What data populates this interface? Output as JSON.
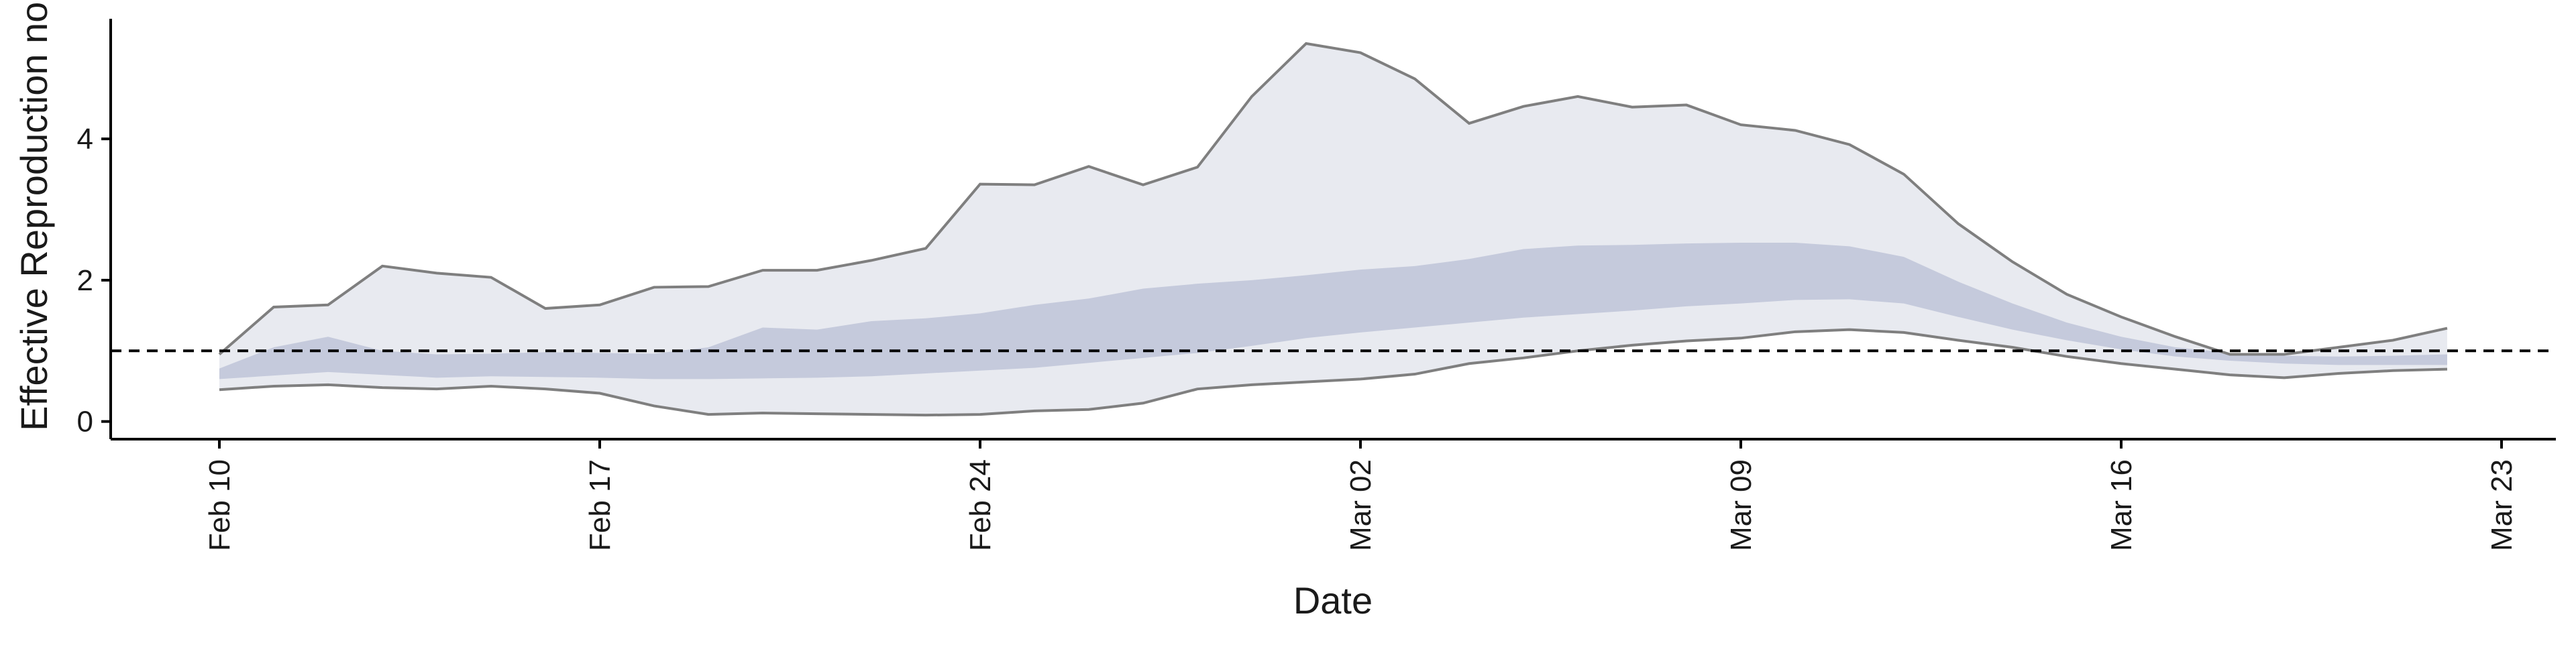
{
  "chart_data": {
    "type": "area",
    "xlabel": "Date",
    "ylabel": "Effective Reproduction no.",
    "x_ticks": [
      "Feb 10",
      "Feb 17",
      "Feb 24",
      "Mar 02",
      "Mar 09",
      "Mar 16",
      "Mar 23"
    ],
    "y_ticks": [
      0,
      2,
      4
    ],
    "x_range": [
      "2020-02-08",
      "2020-03-24"
    ],
    "ylim": [
      -0.25,
      5.7
    ],
    "grid": false,
    "legend": "none",
    "reference_line": {
      "y": 1,
      "style": "dashed",
      "color": "#000000"
    },
    "colors": {
      "outer_band": "#e8eaf0",
      "inner_band": "#c5cadc",
      "bound_line": "#7f7f7f"
    },
    "dates": [
      "2020-02-10",
      "2020-02-11",
      "2020-02-12",
      "2020-02-13",
      "2020-02-14",
      "2020-02-15",
      "2020-02-16",
      "2020-02-17",
      "2020-02-18",
      "2020-02-19",
      "2020-02-20",
      "2020-02-21",
      "2020-02-22",
      "2020-02-23",
      "2020-02-24",
      "2020-02-25",
      "2020-02-26",
      "2020-02-27",
      "2020-02-28",
      "2020-02-29",
      "2020-03-01",
      "2020-03-02",
      "2020-03-03",
      "2020-03-04",
      "2020-03-05",
      "2020-03-06",
      "2020-03-07",
      "2020-03-08",
      "2020-03-09",
      "2020-03-10",
      "2020-03-11",
      "2020-03-12",
      "2020-03-13",
      "2020-03-14",
      "2020-03-15",
      "2020-03-16",
      "2020-03-17",
      "2020-03-18",
      "2020-03-19",
      "2020-03-20",
      "2020-03-21",
      "2020-03-22"
    ],
    "outer_upper": [
      0.95,
      1.62,
      1.65,
      2.2,
      2.1,
      2.04,
      1.6,
      1.65,
      1.9,
      1.91,
      2.14,
      2.14,
      2.28,
      2.45,
      3.36,
      3.35,
      3.61,
      3.35,
      3.6,
      4.6,
      5.35,
      5.22,
      4.85,
      4.22,
      4.46,
      4.6,
      4.45,
      4.48,
      4.2,
      4.12,
      3.92,
      3.5,
      2.8,
      2.26,
      1.8,
      1.48,
      1.2,
      0.95,
      0.95,
      1.05,
      1.15,
      1.32
    ],
    "outer_lower": [
      0.45,
      0.5,
      0.52,
      0.48,
      0.46,
      0.5,
      0.46,
      0.4,
      0.22,
      0.1,
      0.12,
      0.11,
      0.1,
      0.09,
      0.1,
      0.15,
      0.17,
      0.26,
      0.46,
      0.52,
      0.56,
      0.6,
      0.67,
      0.82,
      0.9,
      1.0,
      1.08,
      1.14,
      1.18,
      1.27,
      1.3,
      1.26,
      1.15,
      1.05,
      0.92,
      0.82,
      0.74,
      0.66,
      0.62,
      0.68,
      0.72,
      0.74
    ],
    "inner_upper": [
      0.75,
      1.05,
      1.2,
      1.0,
      0.95,
      0.96,
      0.98,
      0.97,
      0.96,
      1.05,
      1.33,
      1.3,
      1.42,
      1.46,
      1.53,
      1.65,
      1.74,
      1.88,
      1.95,
      2.0,
      2.07,
      2.15,
      2.2,
      2.3,
      2.44,
      2.49,
      2.5,
      2.52,
      2.53,
      2.53,
      2.48,
      2.33,
      1.98,
      1.67,
      1.4,
      1.2,
      1.05,
      0.97,
      0.93,
      0.92,
      0.93,
      0.95
    ],
    "inner_lower": [
      0.6,
      0.65,
      0.7,
      0.66,
      0.62,
      0.64,
      0.63,
      0.62,
      0.6,
      0.6,
      0.61,
      0.62,
      0.64,
      0.68,
      0.72,
      0.76,
      0.83,
      0.9,
      0.97,
      1.07,
      1.18,
      1.26,
      1.33,
      1.4,
      1.47,
      1.52,
      1.57,
      1.63,
      1.67,
      1.72,
      1.73,
      1.67,
      1.48,
      1.3,
      1.15,
      1.02,
      0.92,
      0.86,
      0.82,
      0.8,
      0.8,
      0.8
    ]
  }
}
